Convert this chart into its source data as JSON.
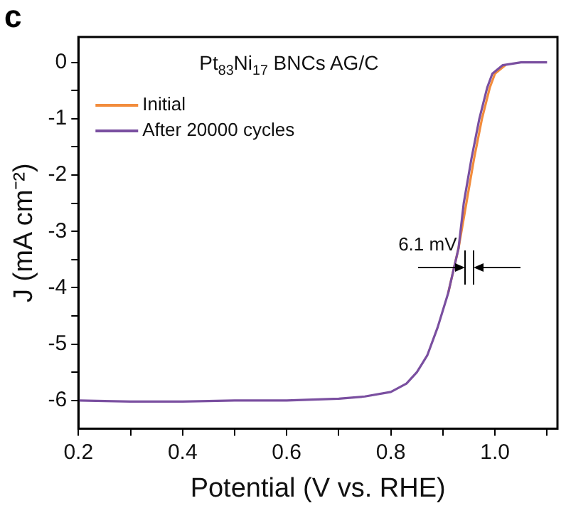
{
  "chart_data": {
    "type": "line",
    "title": "Pt$_{83}$Ni$_{17}$ BNCs AG/C",
    "xlabel": "Potential (V vs. RHE)",
    "ylabel": "J (mA cm⁻²)",
    "annotations": [
      "c",
      "6.1 mV"
    ],
    "series": [
      {
        "name": "Initial",
        "color": "#f28c3c",
        "x": [
          0.91,
          0.93,
          0.945,
          0.96,
          0.975,
          0.99,
          1.0,
          1.02
        ],
        "values": [
          -4.1,
          -3.3,
          -2.5,
          -1.7,
          -1.0,
          -0.45,
          -0.2,
          -0.05
        ]
      },
      {
        "name": "After 20000 cycles",
        "color": "#7a4fa0",
        "x": [
          0.2,
          0.3,
          0.4,
          0.5,
          0.6,
          0.7,
          0.75,
          0.8,
          0.83,
          0.85,
          0.87,
          0.89,
          0.91,
          0.93,
          0.94,
          0.955,
          0.97,
          0.985,
          0.995,
          1.015,
          1.05,
          1.1
        ],
        "values": [
          -6.0,
          -6.02,
          -6.02,
          -6.0,
          -6.0,
          -5.97,
          -5.93,
          -5.85,
          -5.7,
          -5.5,
          -5.2,
          -4.7,
          -4.1,
          -3.3,
          -2.5,
          -1.7,
          -1.0,
          -0.45,
          -0.2,
          -0.05,
          0,
          0
        ]
      }
    ],
    "xlim": [
      0.2,
      1.12
    ],
    "ylim": [
      -6.5,
      0.45
    ],
    "xticks": [
      0.2,
      {
        "value": 0.3,
        "label": null
      },
      0.4,
      {
        "value": 0.5,
        "label": null
      },
      0.6,
      {
        "value": 0.7,
        "label": null
      },
      0.8,
      {
        "value": 0.9,
        "label": null
      },
      "1.0",
      {
        "value": 1.1,
        "label": null
      }
    ],
    "yticks": [
      -6,
      {
        "value": -5.5,
        "label": null
      },
      -5,
      {
        "value": -4.5,
        "label": null
      },
      -4,
      {
        "value": -3.5,
        "label": null
      },
      -3,
      {
        "value": -2.5,
        "label": null
      },
      -2,
      {
        "value": -1.5,
        "label": null
      },
      -1,
      {
        "value": -0.5,
        "label": null
      },
      0
    ],
    "grid": false,
    "legend": "top left",
    "marker": "none",
    "line_style": "solid"
  }
}
